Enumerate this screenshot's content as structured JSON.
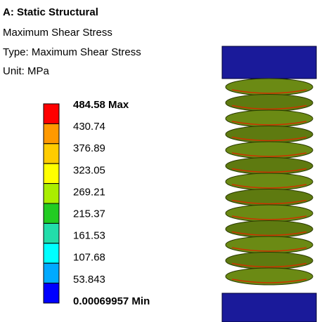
{
  "header": {
    "title": "A: Static Structural",
    "result": "Maximum Shear Stress",
    "type": "Type: Maximum Shear Stress",
    "unit": "Unit: MPa"
  },
  "legend": {
    "labels": [
      "484.58 Max",
      "430.74",
      "376.89",
      "323.05",
      "269.21",
      "215.37",
      "161.53",
      "107.68",
      "53.843",
      "0.00069957 Min"
    ]
  }
}
